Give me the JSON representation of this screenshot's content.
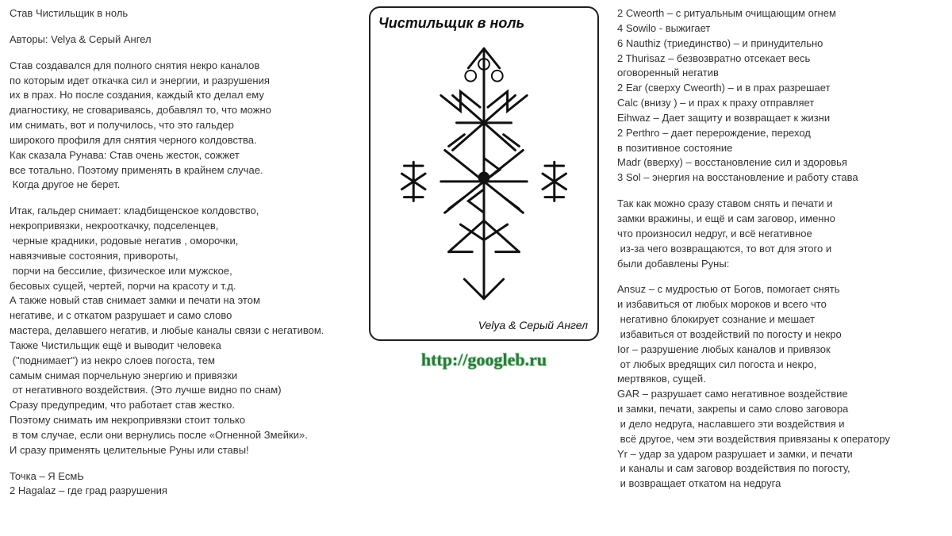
{
  "left": {
    "title": "Став Чистильщик в ноль",
    "authors": "Авторы: Velya & Серый Ангел",
    "p1": [
      "Став создавался для полного снятия некро каналов",
      "по которым идет откачка сил и энергии, и разрушения",
      "их в прах. Но после создания, каждый кто делал ему",
      "диагностику, не сговариваясь, добавлял то, что можно",
      "им снимать, вот и получилось, что это гальдер",
      "широкого профиля для снятия черного колдовства.",
      "Как сказала Рунава: Став очень жесток, сожжет",
      "все тотально. Поэтому применять в крайнем случае.",
      " Когда другое не берет."
    ],
    "p2": [
      "Итак, гальдер снимает: кладбищенское колдовство,",
      "некропривязки, некрооткачку, подселенцев,",
      " черные крадники, родовые негатив , оморочки,",
      "навязчивые состояния, привороты,",
      " порчи на бессилие, физическое или мужское,",
      "бесовых сущей, чертей, порчи на красоту и т.д.",
      "А также новый став снимает замки и печати на этом",
      "негативе, и с откатом разрушает и само слово",
      "мастера, делавшего негатив, и любые каналы связи с негативом.",
      "Также Чистильщик ещё и выводит человека",
      " (\"поднимает\") из некро слоев погоста, тем",
      "самым снимая порчельную энергию и привязки",
      " от негативного воздействия. (Это лучше видно по снам)",
      "Сразу предупредим, что работает став жестко.",
      "Поэтому снимать им некропривязки стоит только",
      " в том случае, если они вернулись после «Огненной Змейки».",
      "И сразу применять целительные Руны или ставы!"
    ],
    "p3": [
      "Точка – Я ЕсмЬ",
      "2 Hagalaz – где град разрушения"
    ]
  },
  "card": {
    "title": "Чистильщик в ноль",
    "signature": "Velya & Серый Ангел",
    "stroke": "#111111"
  },
  "link": "http://googleb.ru",
  "right": {
    "p1": [
      "2 Cweorth – с ритуальным очищающим огнем",
      "4 Sowilo - выжигает",
      "6 Nauthiz (триединство) – и принудительно",
      "2 Thurisaz – безвозвратно отсекает весь",
      "оговоренный негатив",
      "2 Ear (сверху Cweorth) – и в прах разрешает",
      "Calc (внизу ) – и прах к праху отправляет",
      "Eihwaz – Дает защиту и возвращает к жизни",
      "2 Perthro – дает перерождение, переход",
      "в позитивное состояние",
      "Madr (вверху) – восстановление сил и здоровья",
      "3 Sol – энергия на восстановление и работу става"
    ],
    "p2": [
      "Так как можно сразу ставом снять и печати и",
      "замки вражины, и ещё и сам заговор, именно",
      "что произносил недруг, и всё негативное",
      " из-за чего возвращаются, то вот для этого и",
      "были добавлены Руны:"
    ],
    "p3": [
      "Ansuz – с мудростью от Богов, помогает снять",
      "и избавиться от любых мороков и всего что",
      " негативно блокирует сознание и мешает",
      " избавиться от воздействий по погосту и некро",
      "Ior – разрушение любых каналов и привязок",
      " от любых вредящих сил погоста и некро,",
      "мертвяков, сущей.",
      "GAR – разрушает само негативное воздействие",
      "и замки, печати, закрепы и само слово заговора",
      " и дело недруга, наславшего эти воздействия и",
      " всё другое, чем эти воздействия привязаны к оператору",
      "Yr – удар за ударом разрушает и замки, и печати",
      " и каналы и сам заговор воздействия по погосту,",
      " и возвращает откатом на недруга"
    ]
  }
}
